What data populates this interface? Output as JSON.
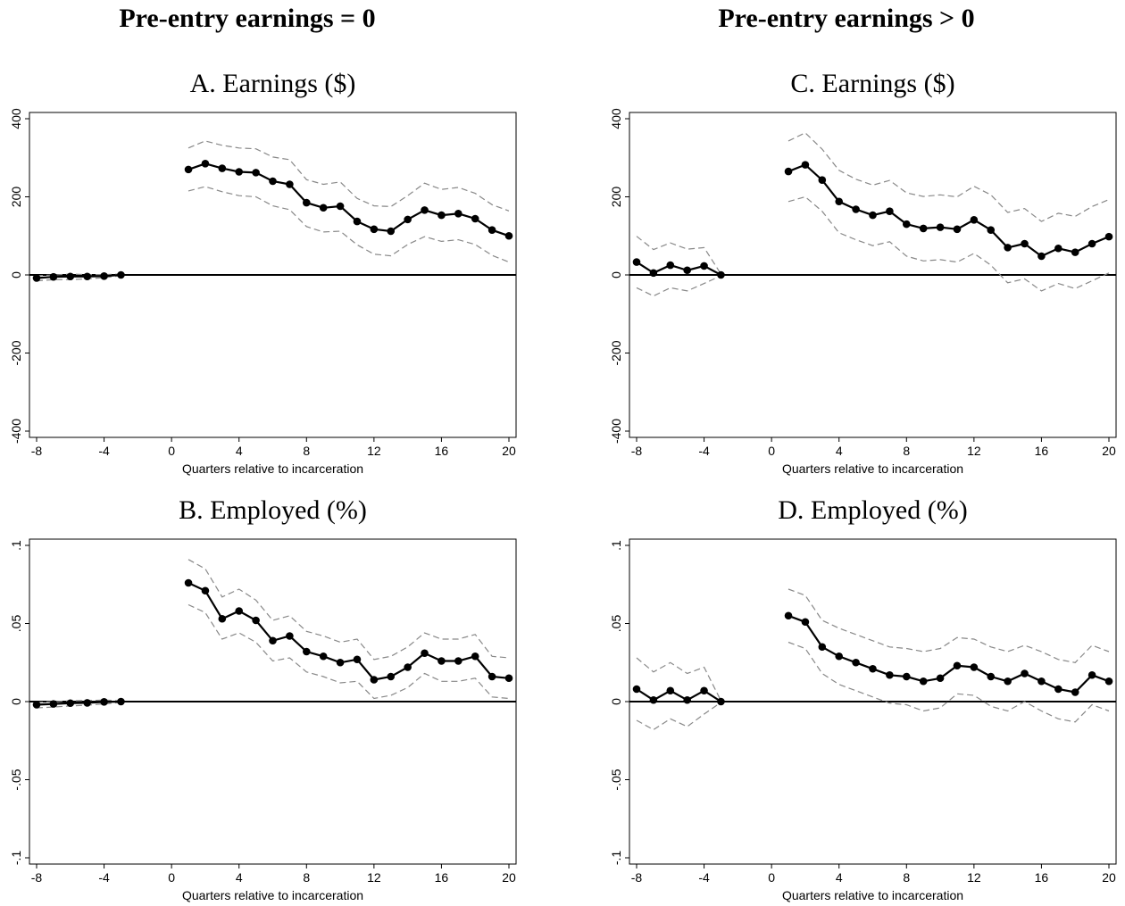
{
  "column_titles": [
    "Pre-entry earnings = 0",
    "Pre-entry earnings > 0"
  ],
  "chart_data": [
    {
      "id": "A",
      "type": "line",
      "title": "A. Earnings ($)",
      "xlabel": "Quarters relative to incarceration",
      "ylabel": "",
      "xlim": [
        -8,
        20
      ],
      "ylim": [
        -400,
        400
      ],
      "xticks": [
        "-8",
        "-4",
        "0",
        "4",
        "8",
        "12",
        "16",
        "20"
      ],
      "yticks": [
        "-400",
        "-200",
        "0",
        "200",
        "400"
      ],
      "reference_line_y": 0,
      "grid": false,
      "legend": "none",
      "segments": [
        {
          "x": [
            -8,
            -7,
            -6,
            -5,
            -4,
            -3
          ],
          "estimate": [
            -8,
            -5,
            -4,
            -4,
            -3,
            0
          ],
          "ci_upper": [
            -2,
            0,
            2,
            1,
            1,
            2
          ],
          "ci_lower": [
            -15,
            -12,
            -12,
            -10,
            -7,
            -2
          ]
        },
        {
          "x": [
            1,
            2,
            3,
            4,
            5,
            6,
            7,
            8,
            9,
            10,
            11,
            12,
            13,
            14,
            15,
            16,
            17,
            18,
            19,
            20
          ],
          "estimate": [
            270,
            285,
            273,
            264,
            262,
            240,
            232,
            185,
            172,
            176,
            137,
            117,
            112,
            142,
            166,
            153,
            157,
            144,
            115,
            100
          ],
          "ci_upper": [
            325,
            343,
            332,
            325,
            323,
            302,
            295,
            244,
            232,
            238,
            196,
            177,
            175,
            203,
            235,
            219,
            224,
            209,
            180,
            164
          ],
          "ci_lower": [
            215,
            226,
            213,
            203,
            200,
            177,
            167,
            124,
            110,
            112,
            77,
            53,
            49,
            78,
            98,
            86,
            90,
            78,
            50,
            33
          ]
        }
      ]
    },
    {
      "id": "C",
      "type": "line",
      "title": "C. Earnings ($)",
      "xlabel": "Quarters relative to incarceration",
      "ylabel": "",
      "xlim": [
        -8,
        20
      ],
      "ylim": [
        -400,
        400
      ],
      "xticks": [
        "-8",
        "-4",
        "0",
        "4",
        "8",
        "12",
        "16",
        "20"
      ],
      "yticks": [
        "-400",
        "-200",
        "0",
        "200",
        "400"
      ],
      "reference_line_y": 0,
      "grid": false,
      "legend": "none",
      "segments": [
        {
          "x": [
            -8,
            -7,
            -6,
            -5,
            -4,
            -3
          ],
          "estimate": [
            33,
            5,
            25,
            12,
            23,
            0
          ],
          "ci_upper": [
            99,
            65,
            82,
            66,
            70,
            2
          ],
          "ci_lower": [
            -33,
            -54,
            -33,
            -41,
            -22,
            -2
          ]
        },
        {
          "x": [
            1,
            2,
            3,
            4,
            5,
            6,
            7,
            8,
            9,
            10,
            11,
            12,
            13,
            14,
            15,
            16,
            17,
            18,
            19,
            20
          ],
          "estimate": [
            265,
            282,
            243,
            188,
            168,
            153,
            163,
            130,
            119,
            122,
            117,
            141,
            115,
            70,
            80,
            48,
            68,
            58,
            80,
            98
          ],
          "ci_upper": [
            343,
            364,
            322,
            268,
            245,
            230,
            242,
            210,
            201,
            205,
            200,
            227,
            205,
            160,
            170,
            137,
            158,
            150,
            175,
            193
          ],
          "ci_lower": [
            188,
            200,
            163,
            108,
            90,
            75,
            85,
            48,
            36,
            39,
            33,
            55,
            25,
            -20,
            -10,
            -41,
            -22,
            -35,
            -15,
            5
          ]
        }
      ]
    },
    {
      "id": "B",
      "type": "line",
      "title": "B. Employed (%)",
      "xlabel": "Quarters relative to incarceration",
      "ylabel": "",
      "xlim": [
        -8,
        20
      ],
      "ylim": [
        -0.1,
        0.1
      ],
      "xticks": [
        "-8",
        "-4",
        "0",
        "4",
        "8",
        "12",
        "16",
        "20"
      ],
      "yticks": [
        "-.1",
        "-.05",
        "0",
        ".05",
        ".1"
      ],
      "reference_line_y": 0,
      "grid": false,
      "legend": "none",
      "segments": [
        {
          "x": [
            -8,
            -7,
            -6,
            -5,
            -4,
            -3
          ],
          "estimate": [
            -0.002,
            -0.0015,
            -0.001,
            -0.0008,
            -0.0002,
            0
          ],
          "ci_upper": [
            -0.0005,
            0,
            0.0005,
            0.0007,
            0.001,
            0.0005
          ],
          "ci_lower": [
            -0.004,
            -0.0035,
            -0.0028,
            -0.0023,
            -0.0015,
            -0.0005
          ]
        },
        {
          "x": [
            1,
            2,
            3,
            4,
            5,
            6,
            7,
            8,
            9,
            10,
            11,
            12,
            13,
            14,
            15,
            16,
            17,
            18,
            19,
            20
          ],
          "estimate": [
            0.076,
            0.071,
            0.053,
            0.058,
            0.052,
            0.039,
            0.042,
            0.032,
            0.029,
            0.025,
            0.027,
            0.014,
            0.016,
            0.022,
            0.031,
            0.026,
            0.026,
            0.029,
            0.016,
            0.015
          ],
          "ci_upper": [
            0.091,
            0.085,
            0.067,
            0.072,
            0.065,
            0.052,
            0.055,
            0.045,
            0.042,
            0.038,
            0.04,
            0.027,
            0.029,
            0.035,
            0.044,
            0.04,
            0.04,
            0.043,
            0.029,
            0.028
          ],
          "ci_lower": [
            0.062,
            0.057,
            0.04,
            0.044,
            0.038,
            0.026,
            0.028,
            0.019,
            0.016,
            0.012,
            0.013,
            0.002,
            0.004,
            0.009,
            0.018,
            0.013,
            0.013,
            0.015,
            0.003,
            0.002
          ]
        }
      ]
    },
    {
      "id": "D",
      "type": "line",
      "title": "D. Employed (%)",
      "xlabel": "Quarters relative to incarceration",
      "ylabel": "",
      "xlim": [
        -8,
        20
      ],
      "ylim": [
        -0.1,
        0.1
      ],
      "xticks": [
        "-8",
        "-4",
        "0",
        "4",
        "8",
        "12",
        "16",
        "20"
      ],
      "yticks": [
        "-.1",
        "-.05",
        "0",
        ".05",
        ".1"
      ],
      "reference_line_y": 0,
      "grid": false,
      "legend": "none",
      "segments": [
        {
          "x": [
            -8,
            -7,
            -6,
            -5,
            -4,
            -3
          ],
          "estimate": [
            0.008,
            0.001,
            0.007,
            0.001,
            0.007,
            0
          ],
          "ci_upper": [
            0.028,
            0.019,
            0.025,
            0.018,
            0.022,
            0.0005
          ],
          "ci_lower": [
            -0.012,
            -0.018,
            -0.011,
            -0.016,
            -0.008,
            -0.0005
          ]
        },
        {
          "x": [
            1,
            2,
            3,
            4,
            5,
            6,
            7,
            8,
            9,
            10,
            11,
            12,
            13,
            14,
            15,
            16,
            17,
            18,
            19,
            20
          ],
          "estimate": [
            0.055,
            0.051,
            0.035,
            0.029,
            0.025,
            0.021,
            0.017,
            0.016,
            0.013,
            0.015,
            0.023,
            0.022,
            0.016,
            0.013,
            0.018,
            0.013,
            0.008,
            0.006,
            0.017,
            0.013
          ],
          "ci_upper": [
            0.072,
            0.068,
            0.052,
            0.047,
            0.043,
            0.039,
            0.035,
            0.034,
            0.032,
            0.034,
            0.041,
            0.04,
            0.035,
            0.032,
            0.036,
            0.032,
            0.027,
            0.025,
            0.036,
            0.032
          ],
          "ci_lower": [
            0.038,
            0.034,
            0.018,
            0.011,
            0.007,
            0.003,
            -0.001,
            -0.002,
            -0.006,
            -0.004,
            0.005,
            0.004,
            -0.003,
            -0.006,
            0,
            -0.006,
            -0.011,
            -0.013,
            -0.002,
            -0.006
          ]
        }
      ]
    }
  ]
}
